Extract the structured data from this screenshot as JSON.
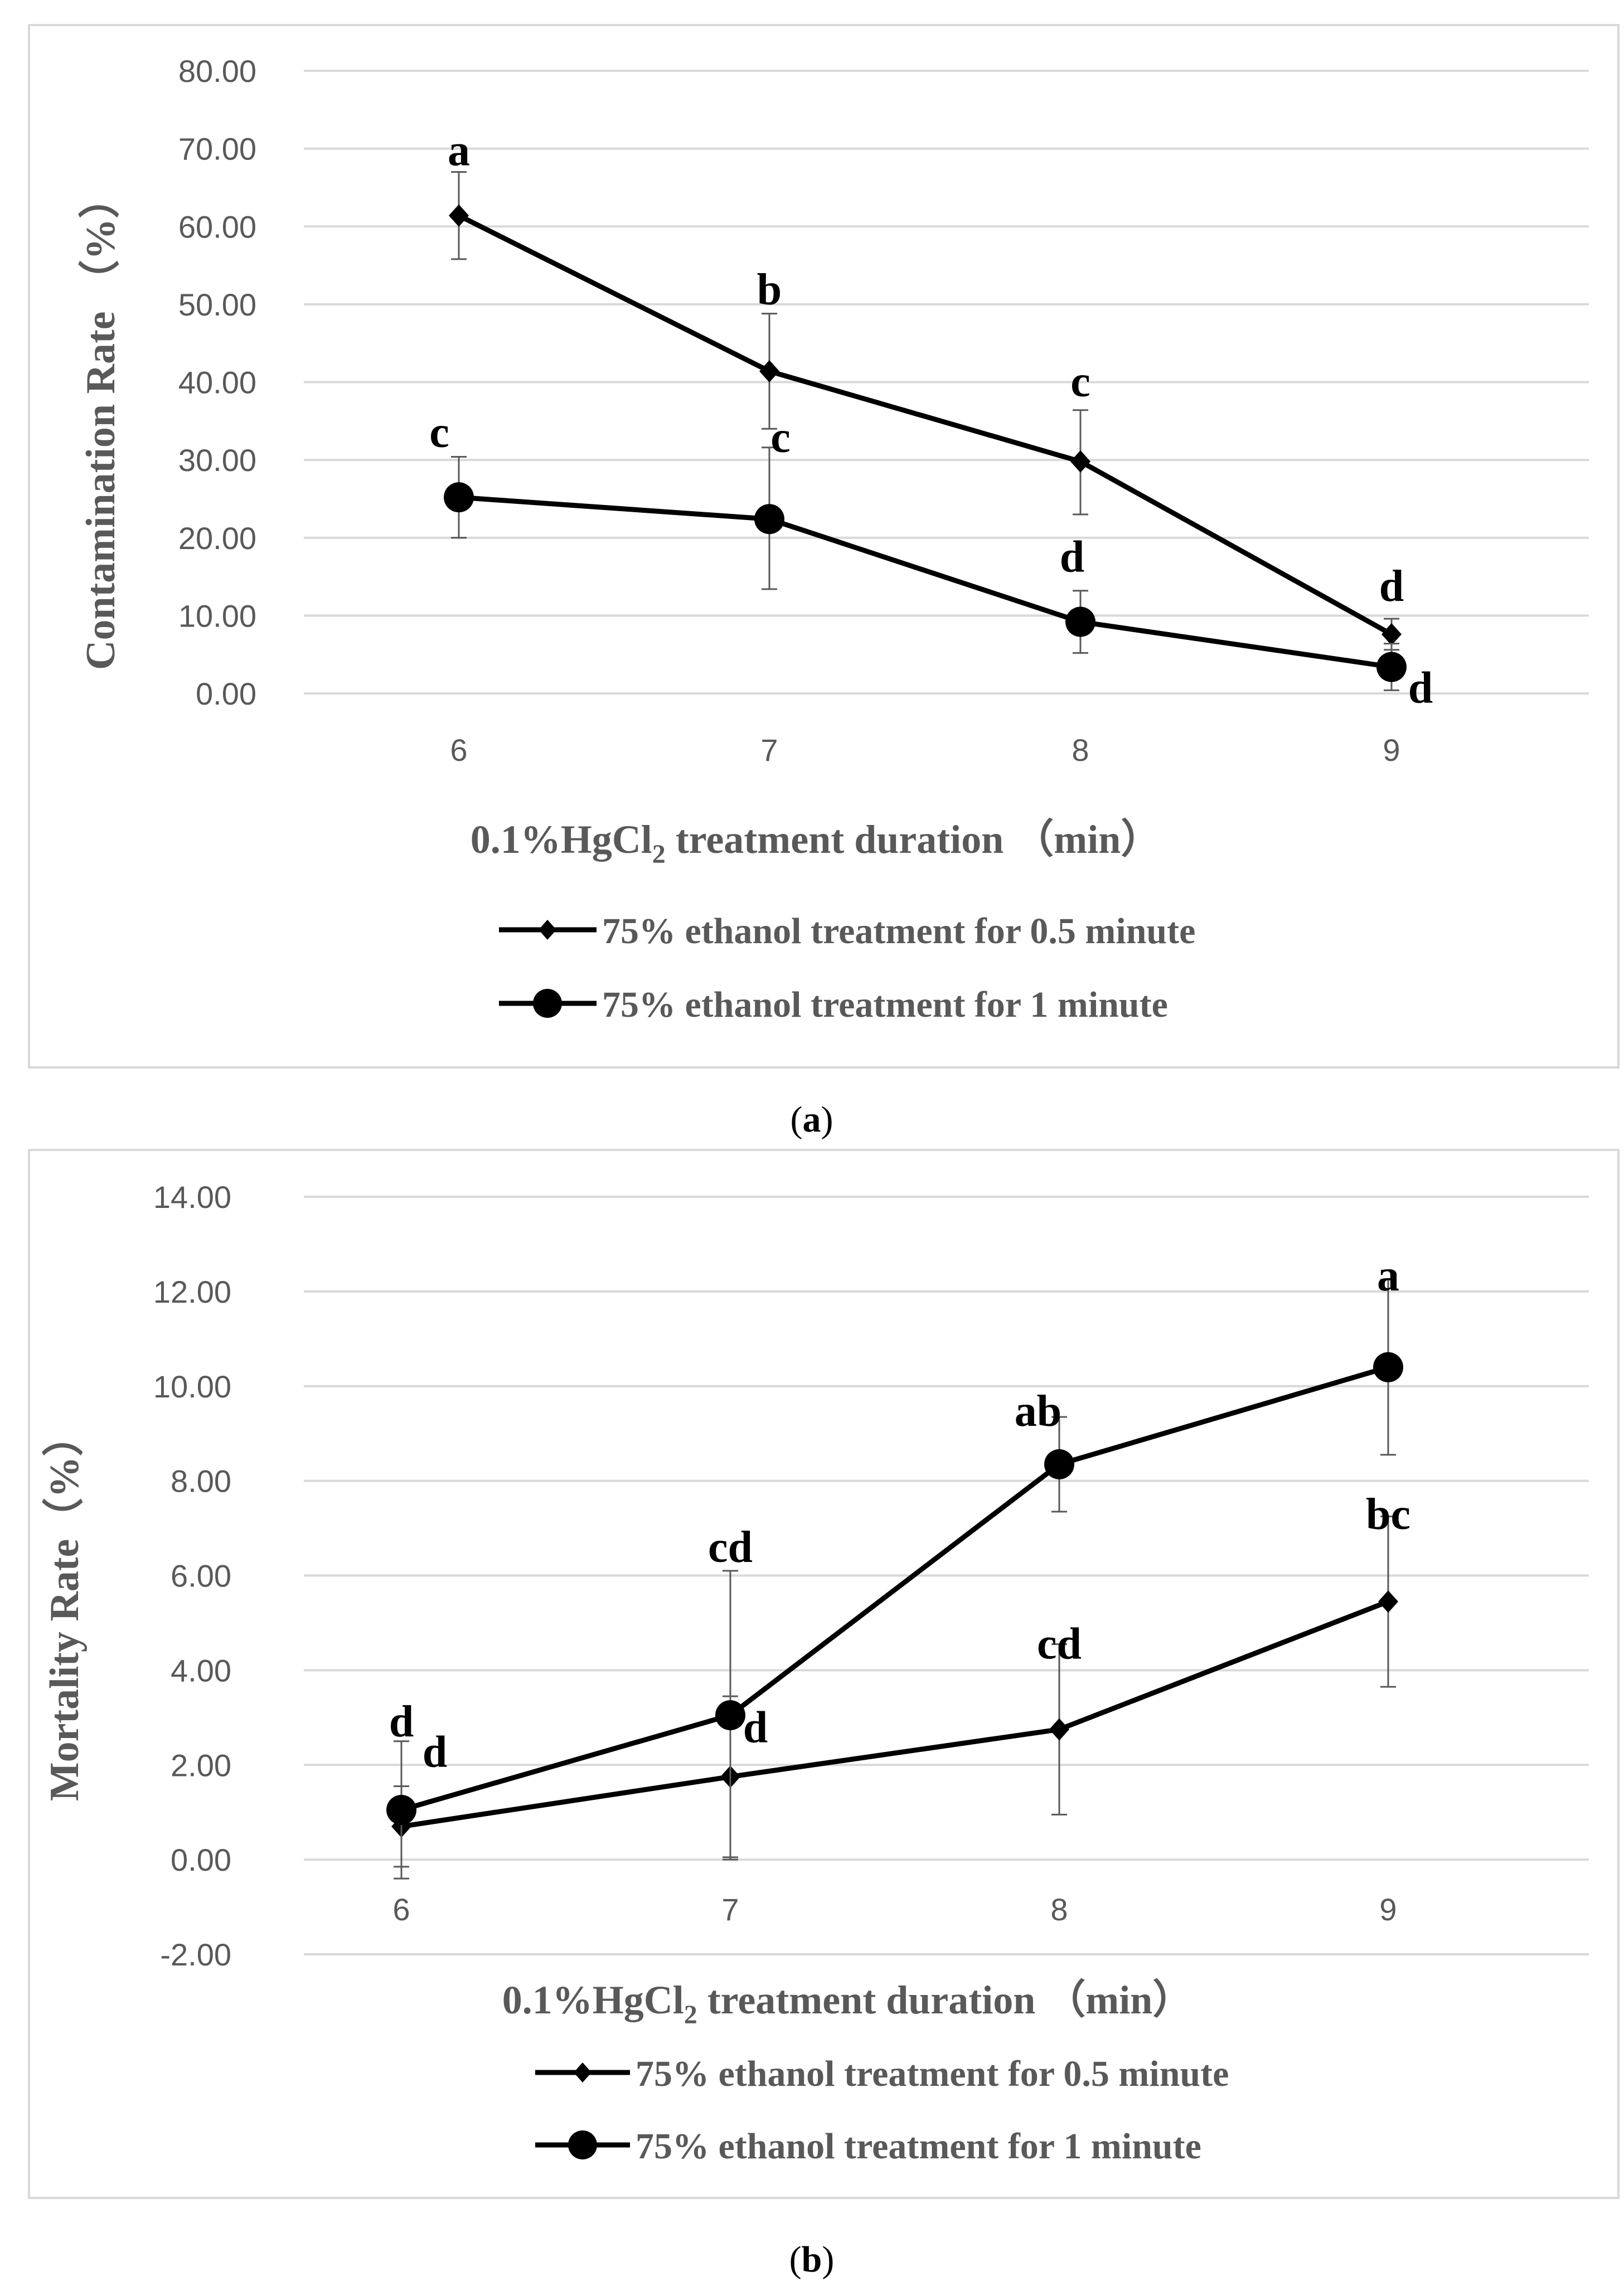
{
  "chart_data": [
    {
      "type": "line",
      "panel_label": "a",
      "ylabel": "Contamination  Rate （%）",
      "xlabel_main": "0.1%HgCl",
      "xlabel_sub": "2",
      "xlabel_rest": " treatment duration （min）",
      "categories": [
        "6",
        "7",
        "8",
        "9"
      ],
      "ylim": [
        0,
        80
      ],
      "ytick_labels": [
        "0.00",
        "10.00",
        "20.00",
        "30.00",
        "40.00",
        "50.00",
        "60.00",
        "70.00",
        "80.00"
      ],
      "series": [
        {
          "name": "75% ethanol treatment for 0.5 minute",
          "marker": "diamond",
          "values": [
            61.4,
            41.4,
            29.8,
            7.6
          ],
          "err_lo": [
            55.8,
            34.0,
            23.0,
            5.6
          ],
          "err_hi": [
            67.0,
            48.8,
            36.4,
            9.6
          ],
          "letters": [
            "a",
            "b",
            "c",
            "d"
          ]
        },
        {
          "name": "75% ethanol treatment for 1 minute",
          "marker": "circle",
          "values": [
            25.2,
            22.4,
            9.2,
            3.4
          ],
          "err_lo": [
            20.0,
            13.4,
            5.2,
            0.4
          ],
          "err_hi": [
            30.4,
            31.6,
            13.2,
            6.4
          ],
          "letters": [
            "c",
            "c",
            "d",
            "d"
          ]
        }
      ]
    },
    {
      "type": "line",
      "panel_label": "b",
      "ylabel": "Mortality Rate（%）",
      "xlabel_main": "0.1%HgCl",
      "xlabel_sub": "2",
      "xlabel_rest": " treatment duration （min）",
      "categories": [
        "6",
        "7",
        "8",
        "9"
      ],
      "ylim": [
        -2,
        14
      ],
      "ytick_labels": [
        "-2.00",
        "0.00",
        "2.00",
        "4.00",
        "6.00",
        "8.00",
        "10.00",
        "12.00",
        "14.00"
      ],
      "series": [
        {
          "name": "75% ethanol treatment for 0.5 minute",
          "marker": "diamond",
          "values": [
            0.7,
            1.75,
            2.75,
            5.45
          ],
          "err_lo": [
            -0.15,
            0.05,
            0.95,
            3.65
          ],
          "err_hi": [
            1.55,
            3.45,
            4.55,
            7.25
          ],
          "letters": [
            "d",
            "d",
            "cd",
            "bc"
          ]
        },
        {
          "name": "75% ethanol treatment for 1 minute",
          "marker": "circle",
          "values": [
            1.05,
            3.05,
            8.35,
            10.4
          ],
          "err_lo": [
            -0.4,
            0.0,
            7.35,
            8.55
          ],
          "err_hi": [
            2.5,
            6.1,
            9.35,
            12.25
          ],
          "letters": [
            "d",
            "cd",
            "ab",
            "a"
          ]
        }
      ]
    }
  ]
}
